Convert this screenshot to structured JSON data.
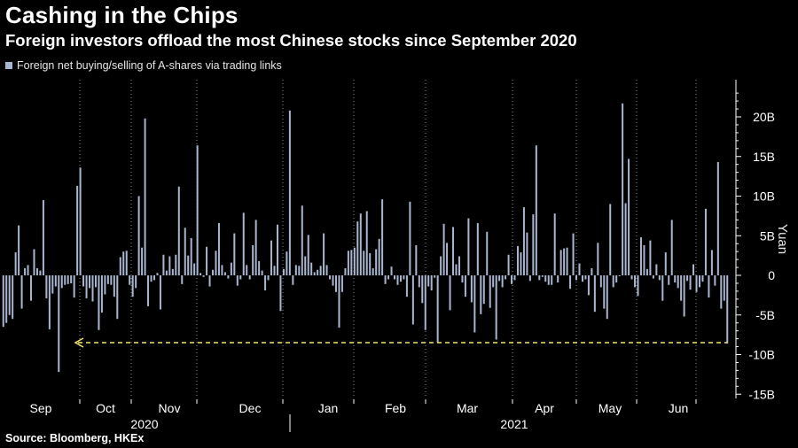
{
  "title": "Cashing in the Chips",
  "subtitle": "Foreign investors offload the most Chinese stocks since September 2020",
  "source": "Source: Bloomberg, HKEx",
  "colors": {
    "bars": "#a9b6cf",
    "annotation": "#f3e66b",
    "background": "#000000",
    "grid": "#ffffff"
  },
  "chart_data": {
    "type": "bar",
    "legend": "Foreign net buying/selling of A-shares via trading links",
    "ylabel": "Yuan",
    "ylim": [
      -16,
      25
    ],
    "yticks": [
      20,
      15,
      10,
      5,
      0,
      -5,
      -10,
      -15
    ],
    "ytick_labels": [
      "20B",
      "15B",
      "10B",
      "5B",
      "0",
      "-5B",
      "-10B",
      "-15B"
    ],
    "month_labels": [
      "Sep",
      "Oct",
      "Nov",
      "Dec",
      "Jan",
      "Feb",
      "Mar",
      "Apr",
      "May",
      "Jun"
    ],
    "year_labels": [
      "2020",
      "2021"
    ],
    "grid": "vertical dotted lines at month boundaries",
    "annotation": "dashed horizontal arrow at the latest value (about -8.6B) pointing back to September 2020",
    "values": [
      -6.5,
      -6,
      -5,
      -5.5,
      2.9,
      6.3,
      -4.2,
      0.9,
      1.3,
      -3.2,
      3.3,
      0.9,
      0.6,
      9.5,
      -2.9,
      -6.8,
      -2.3,
      -1.4,
      -12.2,
      -1.6,
      -1.2,
      -1.1,
      -1.0,
      -2.8,
      11.3,
      13.6,
      -1.4,
      -2.9,
      -1.6,
      -3.3,
      -1.5,
      -6.9,
      -4.7,
      -2.4,
      -1.1,
      -1.2,
      -2.7,
      -5.5,
      2.3,
      3.0,
      3.1,
      -1.2,
      -2.7,
      -1.6,
      10.0,
      3.5,
      19.8,
      -3.9,
      -0.8,
      -0.6,
      0.3,
      -4.3,
      2.6,
      0.6,
      2.4,
      0.8,
      2.6,
      11.2,
      -1.1,
      6.0,
      2.5,
      4.7,
      1.5,
      16.4,
      0.3,
      -0.2,
      3.6,
      -1.4,
      0.7,
      3.1,
      6.6,
      1.3,
      0.4,
      -0.4,
      1.6,
      5.3,
      -1.3,
      -0.5,
      7.9,
      1.3,
      -0.5,
      3.8,
      7.0,
      1.8,
      0.6,
      -1.9,
      -0.6,
      4.4,
      1.2,
      6.4,
      -4.5,
      0.8,
      3.0,
      20.8,
      -1.2,
      1.3,
      1.2,
      8.8,
      2.4,
      5.1,
      1.6,
      0.4,
      0.7,
      1.2,
      5.3,
      1.3,
      -0.5,
      -1.3,
      -2.1,
      -6.6,
      -2.1,
      0.9,
      3.1,
      3.2,
      3.5,
      6.8,
      7.8,
      3.1,
      8.1,
      2.8,
      0.9,
      3.3,
      4.6,
      9.6,
      -1.1,
      -0.5,
      1.1,
      -0.5,
      -1.2,
      -0.8,
      -0.5,
      -2.7,
      9.3,
      -6.2,
      3.8,
      -1.5,
      -3.5,
      -6.9,
      -1.4,
      -1.9,
      -0.3,
      -8.5,
      2.4,
      6.5,
      4.1,
      -4.4,
      6.1,
      1.4,
      2.4,
      -0.9,
      -2.7,
      7.2,
      -3.4,
      -7.2,
      6.6,
      -4.9,
      -3.6,
      5.5,
      -4.1,
      -1.5,
      -8.1,
      -0.7,
      -1.5,
      -0.5,
      2.6,
      -1.1,
      -0.6,
      3.7,
      2.9,
      8.6,
      5.4,
      -0.7,
      7.7,
      16.4,
      -0.6,
      -0.2,
      -0.8,
      -1.2,
      -1.2,
      7.8,
      -0.9,
      3.2,
      3.4,
      3.5,
      -1.7,
      5.3,
      -0.6,
      1.5,
      -0.8,
      -0.5,
      -2.5,
      0.9,
      -4.6,
      4.1,
      -1.5,
      -4.2,
      -5.5,
      9.0,
      -1.5,
      -0.9,
      -0.1,
      21.7,
      9.1,
      14.7,
      -0.5,
      -1.5,
      -2.6,
      4.8,
      3.8,
      0.8,
      4.4,
      -0.4,
      1.4,
      -0.6,
      -3.2,
      2.9,
      -1.2,
      7.0,
      -0.9,
      -1.6,
      -3.2,
      -5.2,
      -0.7,
      -1.8,
      1.4,
      -2.1,
      -1.5,
      -0.8,
      8.4,
      -2.8,
      3.2,
      -1.3,
      14.3,
      -4.2,
      -3.2,
      -8.6
    ]
  }
}
